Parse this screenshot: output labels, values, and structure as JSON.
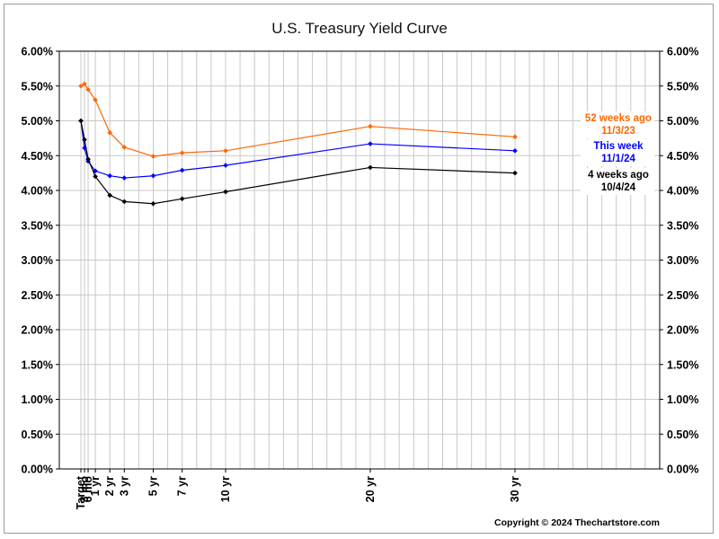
{
  "chart_data": {
    "type": "line",
    "title": "U.S. Treasury Yield Curve",
    "xlabel": "",
    "ylabel": "",
    "ylim": [
      0,
      6
    ],
    "y_ticks": [
      "0.00%",
      "0.50%",
      "1.00%",
      "1.50%",
      "2.00%",
      "2.50%",
      "3.00%",
      "3.50%",
      "4.00%",
      "4.50%",
      "5.00%",
      "5.50%",
      "6.00%"
    ],
    "y_axis_both_sides": true,
    "grid": true,
    "x_positions_months": {
      "Target": 0,
      "3 mo": 3,
      "6 mo": 6,
      "1 yr": 12,
      "2 yr": 24,
      "3 yr": 36,
      "5 yr": 60,
      "7 yr": 84,
      "10 yr": 120,
      "20 yr": 240,
      "30 yr": 360
    },
    "categories": [
      "Target",
      "3 mo",
      "6 mo",
      "1 yr",
      "2 yr",
      "3 yr",
      "5 yr",
      "7 yr",
      "10 yr",
      "20 yr",
      "30 yr"
    ],
    "series": [
      {
        "name": "52 weeks ago",
        "date": "11/3/23",
        "color": "#ff6600",
        "values": [
          5.5,
          5.53,
          5.45,
          5.3,
          4.83,
          4.62,
          4.49,
          4.54,
          4.57,
          4.92,
          4.77
        ]
      },
      {
        "name": "This week",
        "date": "11/1/24",
        "color": "#0000ff",
        "values": [
          5.0,
          4.61,
          4.42,
          4.28,
          4.21,
          4.18,
          4.21,
          4.29,
          4.36,
          4.67,
          4.57
        ]
      },
      {
        "name": "4 weeks ago",
        "date": "10/4/24",
        "color": "#000000",
        "values": [
          5.0,
          4.73,
          4.45,
          4.2,
          3.93,
          3.84,
          3.81,
          3.88,
          3.98,
          4.33,
          4.25
        ]
      }
    ],
    "legend_placement": "right, beside line ends",
    "copyright": "Copyright © 2024 Thechartstore.com"
  }
}
